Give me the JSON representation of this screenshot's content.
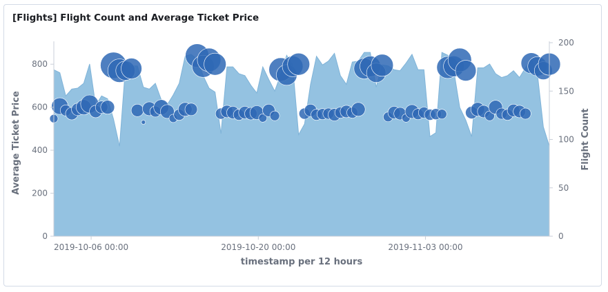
{
  "panel": {
    "title": "[Flights] Flight Count and Average Ticket Price"
  },
  "colors": {
    "area": "#94c2e1",
    "area_line": "#7fb3d8",
    "bubble": "#2f69b5",
    "axis": "#c9cfd8",
    "text": "#69707d"
  },
  "chart_data": {
    "type": "area",
    "title": "[Flights] Flight Count and Average Ticket Price",
    "xlabel": "timestamp per 12 hours",
    "x_ticks": [
      "2019-10-06 00:00",
      "2019-10-20 00:00",
      "2019-11-03 00:00"
    ],
    "x_tick_index": [
      6.25,
      34.25,
      62.25
    ],
    "x_count": 83,
    "y_left": {
      "label": "Average Ticket Price",
      "range": [
        0,
        900
      ],
      "ticks": [
        0,
        200,
        400,
        600,
        800
      ]
    },
    "y_right": {
      "label": "Flight Count",
      "range": [
        0,
        200
      ],
      "ticks": [
        0,
        50,
        100,
        150,
        200
      ]
    },
    "series": [
      {
        "name": "Flight Count",
        "axis": "right",
        "type": "area",
        "values": [
          172,
          169,
          145,
          152,
          153,
          158,
          178,
          135,
          145,
          142,
          121,
          93,
          175,
          176,
          176,
          154,
          152,
          158,
          141,
          136,
          146,
          158,
          186,
          188,
          183,
          166,
          153,
          149,
          106,
          175,
          175,
          168,
          166,
          156,
          148,
          175,
          162,
          150,
          167,
          187,
          177,
          105,
          116,
          157,
          186,
          177,
          181,
          189,
          166,
          157,
          180,
          181,
          190,
          190,
          154,
          177,
          176,
          172,
          171,
          179,
          188,
          172,
          172,
          103,
          107,
          190,
          187,
          171,
          133,
          120,
          103,
          174,
          174,
          178,
          168,
          164,
          166,
          171,
          164,
          174,
          183,
          168,
          113,
          93
        ],
        "note_values_length": 84
      },
      {
        "name": "Average Ticket Price",
        "axis": "left",
        "type": "bubble",
        "points": [
          {
            "i": 0,
            "v": 547,
            "r": 6
          },
          {
            "i": 1,
            "v": 605,
            "r": 12
          },
          {
            "i": 2,
            "v": 585,
            "r": 8
          },
          {
            "i": 3,
            "v": 570,
            "r": 9
          },
          {
            "i": 4,
            "v": 590,
            "r": 9
          },
          {
            "i": 5,
            "v": 600,
            "r": 11
          },
          {
            "i": 6,
            "v": 615,
            "r": 13
          },
          {
            "i": 7,
            "v": 580,
            "r": 9
          },
          {
            "i": 8,
            "v": 600,
            "r": 9
          },
          {
            "i": 9,
            "v": 600,
            "r": 10
          },
          {
            "i": 10,
            "v": 795,
            "r": 19
          },
          {
            "i": 11,
            "v": 770,
            "r": 17
          },
          {
            "i": 12,
            "v": 770,
            "r": 14
          },
          {
            "i": 13,
            "v": 780,
            "r": 15
          },
          {
            "i": 14,
            "v": 585,
            "r": 9
          },
          {
            "i": 15,
            "v": 530,
            "r": 3
          },
          {
            "i": 16,
            "v": 593,
            "r": 10
          },
          {
            "i": 17,
            "v": 580,
            "r": 8
          },
          {
            "i": 18,
            "v": 600,
            "r": 11
          },
          {
            "i": 19,
            "v": 580,
            "r": 10
          },
          {
            "i": 20,
            "v": 548,
            "r": 6
          },
          {
            "i": 21,
            "v": 565,
            "r": 8
          },
          {
            "i": 22,
            "v": 590,
            "r": 10
          },
          {
            "i": 23,
            "v": 590,
            "r": 9
          },
          {
            "i": 24,
            "v": 840,
            "r": 17
          },
          {
            "i": 25,
            "v": 790,
            "r": 16
          },
          {
            "i": 26,
            "v": 820,
            "r": 17
          },
          {
            "i": 27,
            "v": 800,
            "r": 16
          },
          {
            "i": 28,
            "v": 570,
            "r": 8
          },
          {
            "i": 29,
            "v": 580,
            "r": 9
          },
          {
            "i": 30,
            "v": 575,
            "r": 9
          },
          {
            "i": 31,
            "v": 565,
            "r": 8
          },
          {
            "i": 32,
            "v": 575,
            "r": 9
          },
          {
            "i": 33,
            "v": 570,
            "r": 9
          },
          {
            "i": 34,
            "v": 575,
            "r": 10
          },
          {
            "i": 35,
            "v": 550,
            "r": 6
          },
          {
            "i": 36,
            "v": 585,
            "r": 9
          },
          {
            "i": 37,
            "v": 560,
            "r": 7
          },
          {
            "i": 38,
            "v": 775,
            "r": 17
          },
          {
            "i": 39,
            "v": 750,
            "r": 15
          },
          {
            "i": 40,
            "v": 790,
            "r": 15
          },
          {
            "i": 41,
            "v": 800,
            "r": 16
          },
          {
            "i": 42,
            "v": 570,
            "r": 8
          },
          {
            "i": 43,
            "v": 585,
            "r": 9
          },
          {
            "i": 44,
            "v": 565,
            "r": 8
          },
          {
            "i": 45,
            "v": 568,
            "r": 8
          },
          {
            "i": 46,
            "v": 570,
            "r": 8
          },
          {
            "i": 47,
            "v": 565,
            "r": 9
          },
          {
            "i": 48,
            "v": 575,
            "r": 8
          },
          {
            "i": 49,
            "v": 580,
            "r": 9
          },
          {
            "i": 50,
            "v": 575,
            "r": 8
          },
          {
            "i": 51,
            "v": 590,
            "r": 10
          },
          {
            "i": 52,
            "v": 780,
            "r": 15
          },
          {
            "i": 53,
            "v": 790,
            "r": 15
          },
          {
            "i": 54,
            "v": 760,
            "r": 14
          },
          {
            "i": 55,
            "v": 795,
            "r": 16
          },
          {
            "i": 56,
            "v": 555,
            "r": 7
          },
          {
            "i": 57,
            "v": 575,
            "r": 9
          },
          {
            "i": 58,
            "v": 570,
            "r": 9
          },
          {
            "i": 59,
            "v": 550,
            "r": 6
          },
          {
            "i": 60,
            "v": 580,
            "r": 10
          },
          {
            "i": 61,
            "v": 568,
            "r": 8
          },
          {
            "i": 62,
            "v": 575,
            "r": 8
          },
          {
            "i": 63,
            "v": 565,
            "r": 8
          },
          {
            "i": 64,
            "v": 568,
            "r": 8
          },
          {
            "i": 65,
            "v": 568,
            "r": 7
          },
          {
            "i": 66,
            "v": 785,
            "r": 16
          },
          {
            "i": 67,
            "v": 790,
            "r": 15
          },
          {
            "i": 68,
            "v": 820,
            "r": 17
          },
          {
            "i": 69,
            "v": 770,
            "r": 15
          },
          {
            "i": 70,
            "v": 575,
            "r": 9
          },
          {
            "i": 71,
            "v": 590,
            "r": 10
          },
          {
            "i": 72,
            "v": 580,
            "r": 9
          },
          {
            "i": 73,
            "v": 560,
            "r": 7
          },
          {
            "i": 74,
            "v": 600,
            "r": 10
          },
          {
            "i": 75,
            "v": 570,
            "r": 8
          },
          {
            "i": 76,
            "v": 565,
            "r": 8
          },
          {
            "i": 77,
            "v": 585,
            "r": 9
          },
          {
            "i": 78,
            "v": 580,
            "r": 9
          },
          {
            "i": 79,
            "v": 570,
            "r": 8
          },
          {
            "i": 80,
            "v": 805,
            "r": 15
          },
          {
            "i": 81,
            "v": 790,
            "r": 14
          },
          {
            "i": 82,
            "v": 770,
            "r": 13
          },
          {
            "i": 83,
            "v": 800,
            "r": 16
          }
        ]
      }
    ],
    "grid": false,
    "legend": "none"
  }
}
